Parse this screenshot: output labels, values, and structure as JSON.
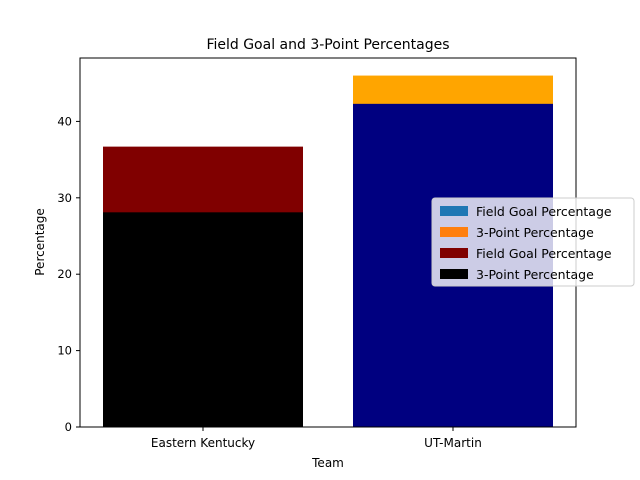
{
  "chart_data": {
    "type": "bar",
    "stacked": "overlaid",
    "title": "Field Goal and 3-Point Percentages",
    "xlabel": "Team",
    "ylabel": "Percentage",
    "categories": [
      "Eastern Kentucky",
      "UT-Martin"
    ],
    "ylim": [
      0,
      48.3
    ],
    "yticks": [
      0,
      10,
      20,
      30,
      40
    ],
    "grid": false,
    "legend_position": "center-right",
    "bars": [
      {
        "category": "Eastern Kentucky",
        "series": "Field Goal Percentage",
        "value": 36.7,
        "color": "#800000"
      },
      {
        "category": "Eastern Kentucky",
        "series": "3-Point Percentage",
        "value": 28.1,
        "color": "#000000"
      },
      {
        "category": "UT-Martin",
        "series": "3-Point Percentage",
        "value": 46.0,
        "color": "#ffa500"
      },
      {
        "category": "UT-Martin",
        "series": "Field Goal Percentage",
        "value": 42.3,
        "color": "#000080"
      }
    ],
    "legend": [
      {
        "label": "Field Goal Percentage",
        "color": "#1f77b4"
      },
      {
        "label": "3-Point Percentage",
        "color": "#ff7f0e"
      },
      {
        "label": "Field Goal Percentage",
        "color": "#800000"
      },
      {
        "label": "3-Point Percentage",
        "color": "#000000"
      }
    ]
  }
}
